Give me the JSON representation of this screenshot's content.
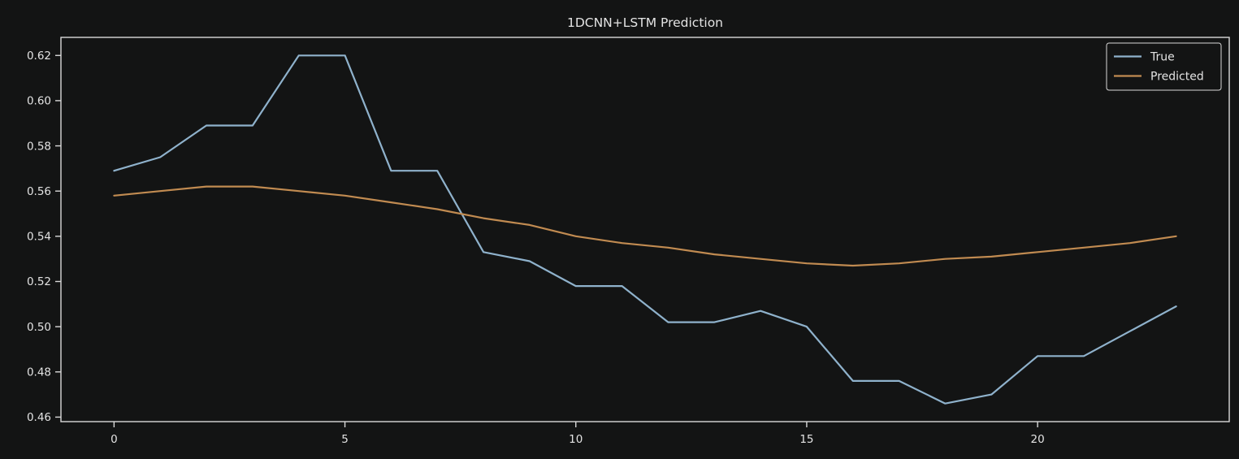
{
  "window": {
    "background": "#131414"
  },
  "chart_data": {
    "type": "line",
    "title": "1DCNN+LSTM Prediction",
    "xlabel": "",
    "ylabel": "",
    "x": [
      0,
      1,
      2,
      3,
      4,
      5,
      6,
      7,
      8,
      9,
      10,
      11,
      12,
      13,
      14,
      15,
      16,
      17,
      18,
      19,
      20,
      21,
      22,
      23
    ],
    "series": [
      {
        "name": "True",
        "color": "#8fb2cc",
        "values": [
          0.569,
          0.575,
          0.589,
          0.589,
          0.62,
          0.62,
          0.569,
          0.569,
          0.533,
          0.529,
          0.518,
          0.518,
          0.502,
          0.502,
          0.507,
          0.5,
          0.476,
          0.476,
          0.466,
          0.47,
          0.487,
          0.487,
          0.498,
          0.509
        ]
      },
      {
        "name": "Predicted",
        "color": "#c18b51",
        "values": [
          0.558,
          0.56,
          0.562,
          0.562,
          0.56,
          0.558,
          0.555,
          0.552,
          0.548,
          0.545,
          0.54,
          0.537,
          0.535,
          0.532,
          0.53,
          0.528,
          0.527,
          0.528,
          0.53,
          0.531,
          0.533,
          0.535,
          0.537,
          0.54
        ]
      }
    ],
    "xlim": [
      -1.15,
      24.15
    ],
    "ylim": [
      0.458,
      0.628
    ],
    "x_ticks": [
      0,
      5,
      10,
      15,
      20
    ],
    "y_ticks": [
      0.46,
      0.48,
      0.5,
      0.52,
      0.54,
      0.56,
      0.58,
      0.6,
      0.62
    ],
    "y_tick_decimals": 2,
    "grid": false,
    "legend": {
      "position": "upper right",
      "entries": [
        "True",
        "Predicted"
      ]
    },
    "style": {
      "background": "#131414",
      "spine_color": "#d9d9d9",
      "tick_color": "#d9d9d9",
      "text_color": "#e3e3e3",
      "line_width": 2.2
    }
  }
}
